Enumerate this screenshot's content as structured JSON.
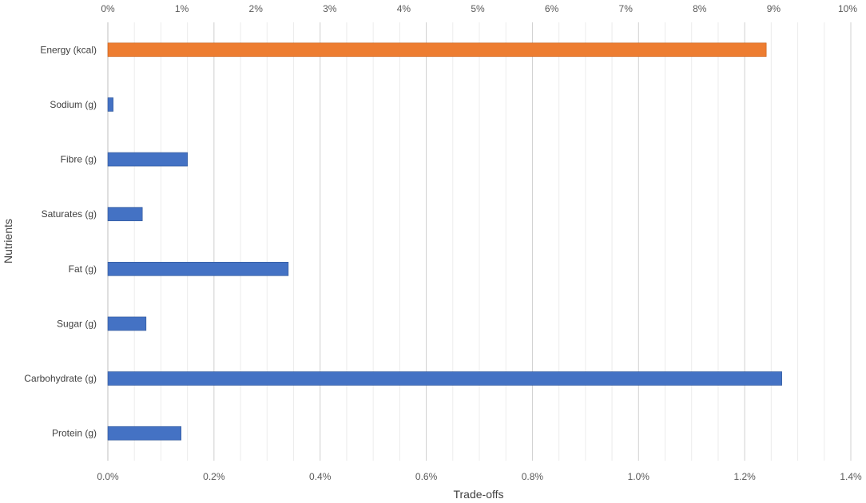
{
  "chart_data": {
    "type": "bar",
    "orientation": "horizontal",
    "title": "",
    "xlabel": "Trade-offs",
    "ylabel": "Nutrients",
    "categories": [
      "Energy (kcal)",
      "Sodium (g)",
      "Fibre (g)",
      "Saturates (g)",
      "Fat (g)",
      "Sugar (g)",
      "Carbohydrate (g)",
      "Protein (g)"
    ],
    "series": [
      {
        "axis": "top",
        "color": "#ed7d31",
        "values": [
          8.9,
          null,
          null,
          null,
          null,
          null,
          null,
          null
        ]
      },
      {
        "axis": "bottom",
        "color": "#4472c4",
        "values": [
          null,
          0.01,
          0.15,
          0.065,
          0.34,
          0.072,
          1.27,
          0.138
        ]
      }
    ],
    "x_bottom": {
      "lim": [
        0,
        1.4
      ],
      "ticks": [
        "0.0%",
        "0.2%",
        "0.4%",
        "0.6%",
        "0.8%",
        "1.0%",
        "1.2%",
        "1.4%"
      ]
    },
    "x_top": {
      "lim": [
        0,
        10
      ],
      "ticks": [
        "0%",
        "1%",
        "2%",
        "3%",
        "4%",
        "5%",
        "6%",
        "7%",
        "8%",
        "9%",
        "10%"
      ]
    },
    "grid": true,
    "legend": "none"
  }
}
